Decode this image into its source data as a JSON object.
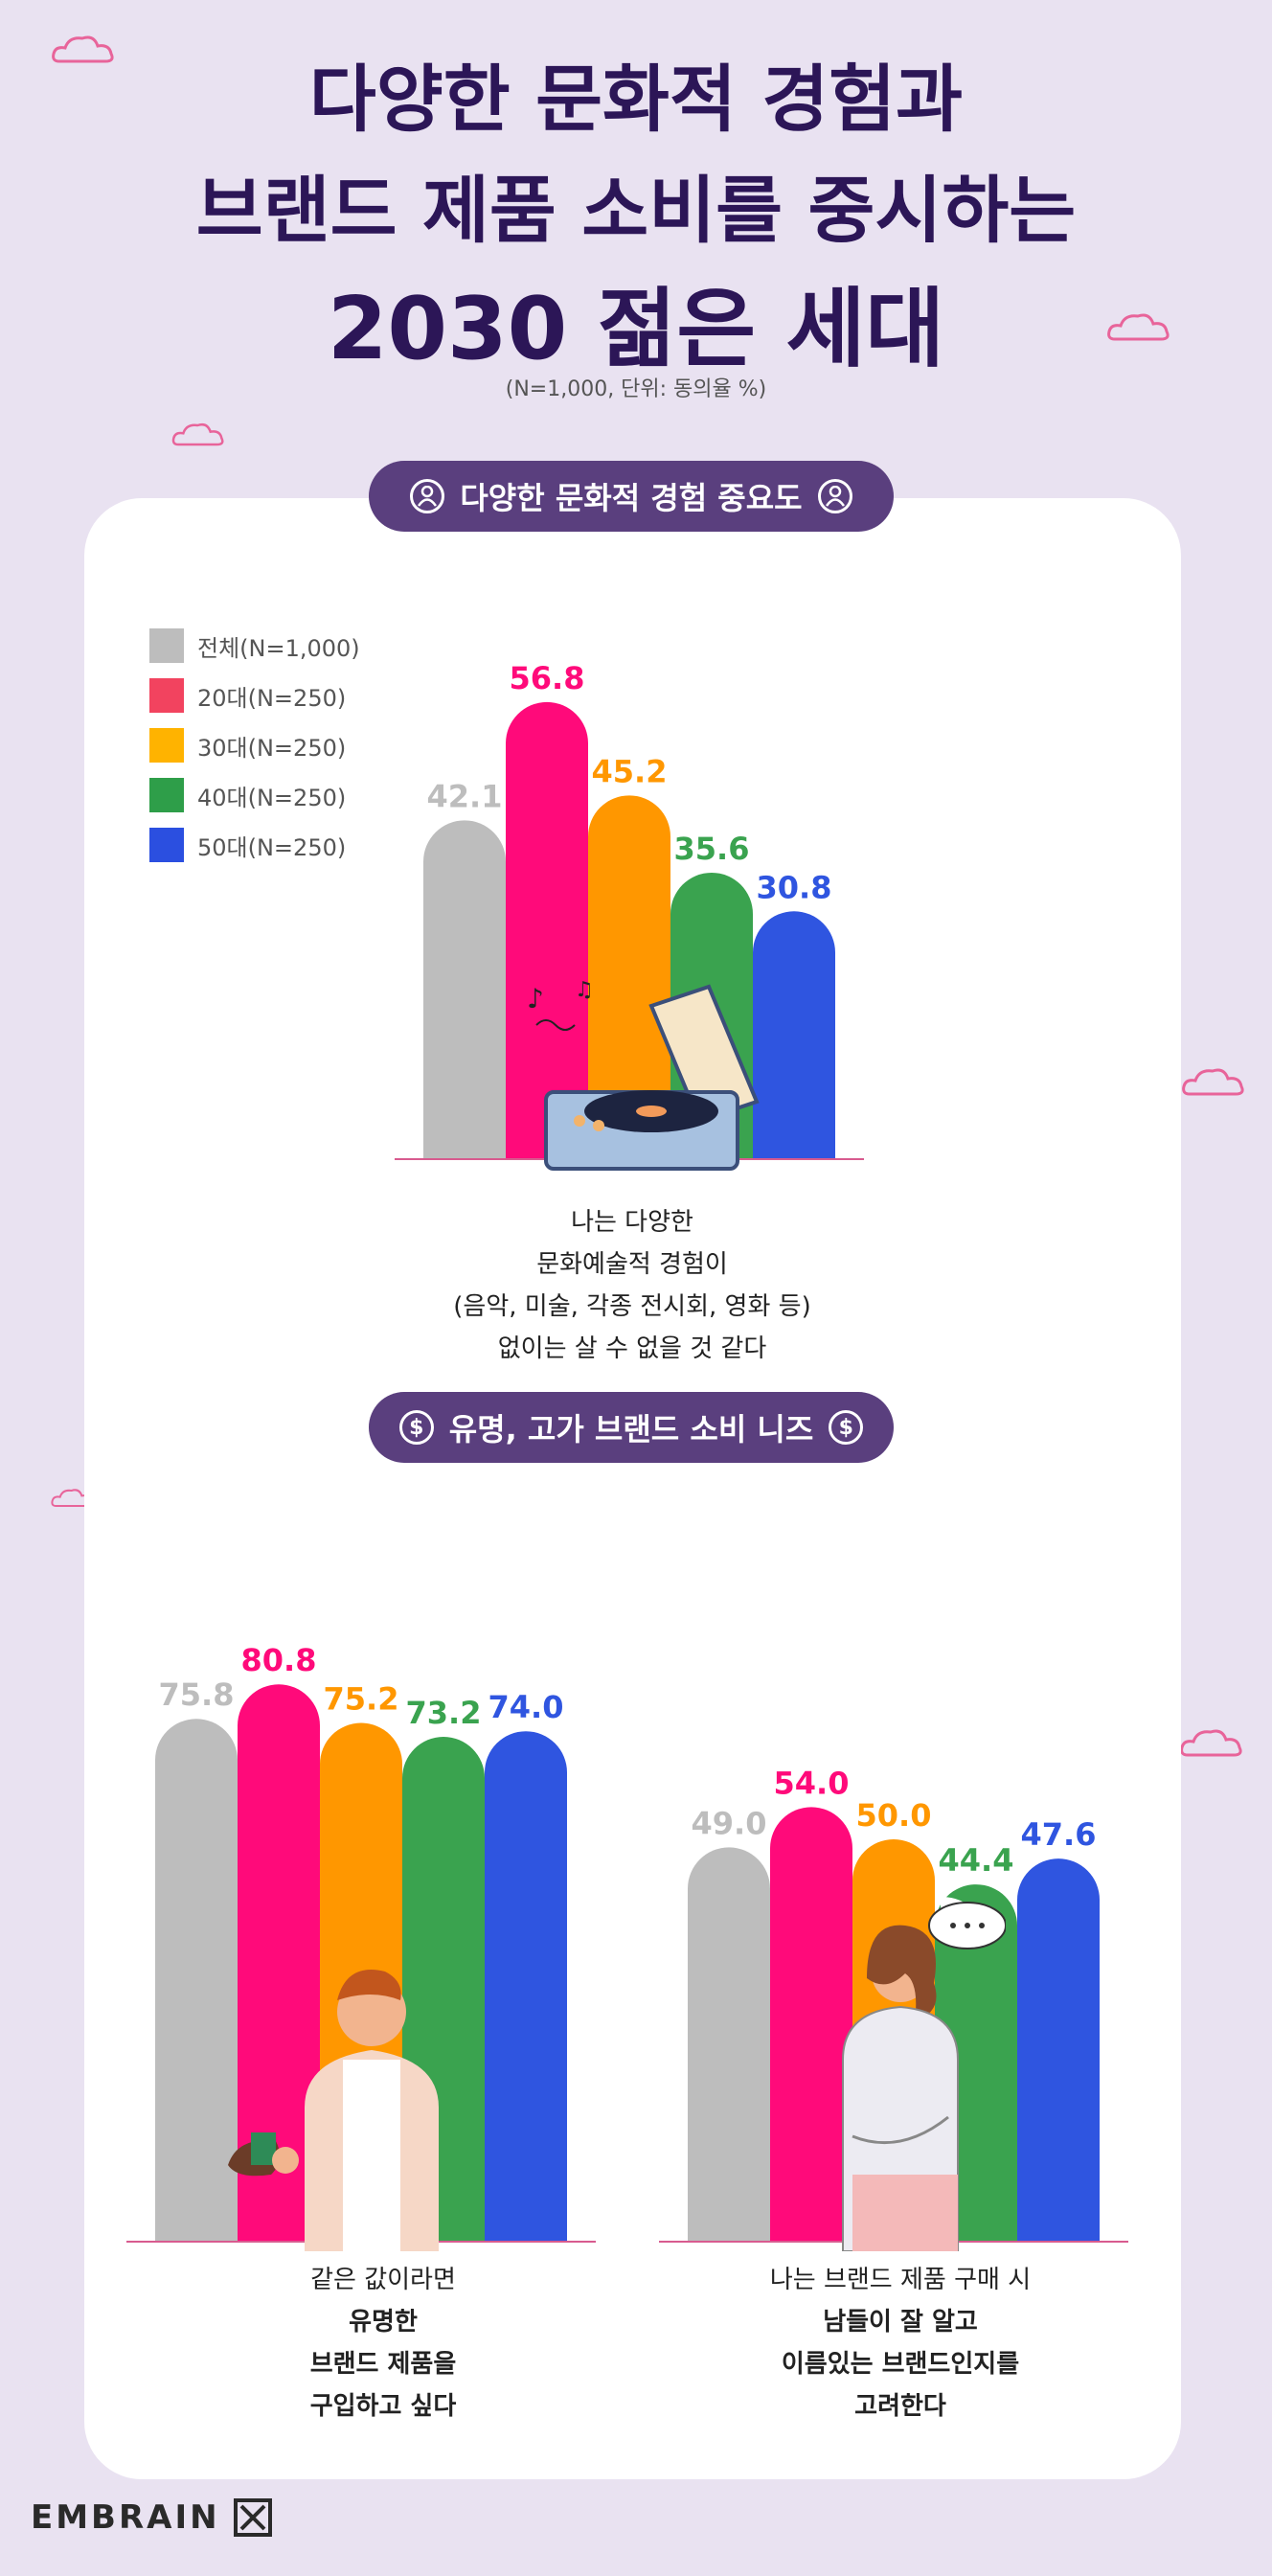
{
  "title": {
    "line1": "다양한 문화적 경험과",
    "line2": "브랜드 제품 소비를 중시하는",
    "line3": "2030 젊은 세대",
    "note": "(N=1,000, 단위: 동의율 %)"
  },
  "sections": {
    "culture_label": "다양한 문화적 경험 중요도",
    "brand_label": "유명, 고가 브랜드 소비 니즈"
  },
  "legend": [
    {
      "label": "전체(N=1,000)",
      "color": "#bdbdbd"
    },
    {
      "label": "20대(N=250)",
      "color": "#f2435f"
    },
    {
      "label": "30대(N=250)",
      "color": "#ffb300"
    },
    {
      "label": "40대(N=250)",
      "color": "#2e9e49"
    },
    {
      "label": "50대(N=250)",
      "color": "#2b4fe0"
    }
  ],
  "chart_data": [
    {
      "type": "bar",
      "categories": [
        "전체(N=1,000)",
        "20대(N=250)",
        "30대(N=250)",
        "40대(N=250)",
        "50대(N=250)"
      ],
      "values": [
        42.1,
        56.8,
        45.2,
        35.6,
        30.8
      ],
      "labels": [
        "42.1",
        "56.8",
        "45.2",
        "35.6",
        "30.8"
      ],
      "colors": [
        "#bdbdbd",
        "#ff0a7a",
        "#ff9700",
        "#3aa34f",
        "#2f55e0"
      ],
      "caption": [
        "나는 다양한",
        "문화예술적 경험이",
        "(음악, 미술, 각종 전시회, 영화 등)",
        "없이는 살 수 없을 것 같다"
      ],
      "ylim": [
        0,
        100
      ]
    },
    {
      "type": "bar",
      "categories": [
        "전체(N=1,000)",
        "20대(N=250)",
        "30대(N=250)",
        "40대(N=250)",
        "50대(N=250)"
      ],
      "values": [
        75.8,
        80.8,
        75.2,
        73.2,
        74.0
      ],
      "labels": [
        "75.8",
        "80.8",
        "75.2",
        "73.2",
        "74.0"
      ],
      "colors": [
        "#bdbdbd",
        "#ff0a7a",
        "#ff9700",
        "#3aa34f",
        "#2f55e0"
      ],
      "caption": [
        "같은 값이라면",
        "유명한",
        "브랜드 제품을",
        "구입하고 싶다"
      ],
      "ylim": [
        0,
        100
      ]
    },
    {
      "type": "bar",
      "categories": [
        "전체(N=1,000)",
        "20대(N=250)",
        "30대(N=250)",
        "40대(N=250)",
        "50대(N=250)"
      ],
      "values": [
        49.0,
        54.0,
        50.0,
        44.4,
        47.6
      ],
      "labels": [
        "49.0",
        "54.0",
        "50.0",
        "44.4",
        "47.6"
      ],
      "colors": [
        "#bdbdbd",
        "#ff0a7a",
        "#ff9700",
        "#3aa34f",
        "#2f55e0"
      ],
      "caption": [
        "나는 브랜드 제품 구매 시",
        "남들이 잘 알고",
        "이름있는 브랜드인지를",
        "고려한다"
      ],
      "ylim": [
        0,
        100
      ]
    }
  ],
  "brand": "EMBRAIN"
}
